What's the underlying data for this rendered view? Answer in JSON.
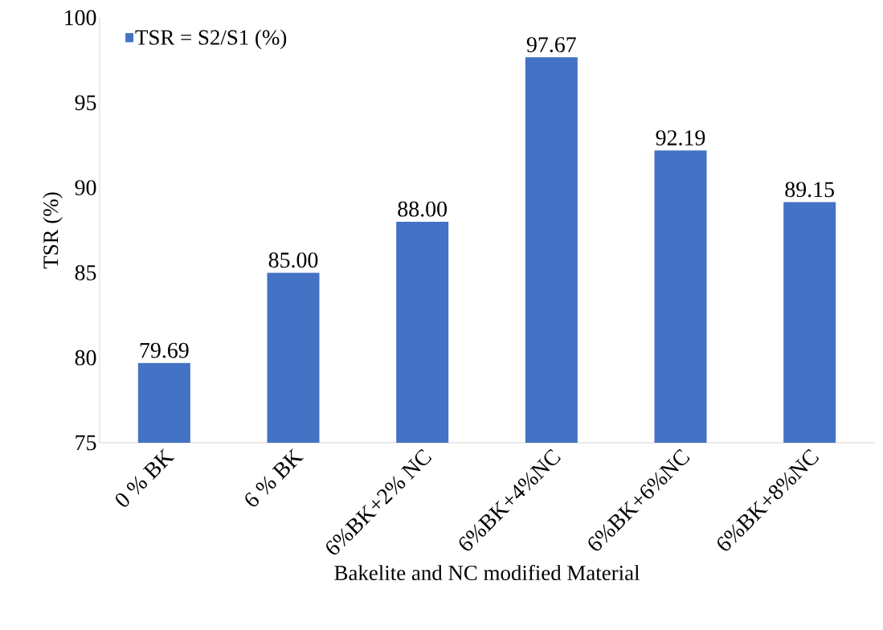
{
  "chart_data": {
    "type": "bar",
    "xlabel": "Bakelite and NC modified Material",
    "ylabel": "TSR (%)",
    "categories": [
      "0 % BK",
      "6 % BK",
      "6%BK+2% NC",
      "6%BK+4%NC",
      "6%BK+6%NC",
      "6%BK+8%NC"
    ],
    "series": [
      {
        "name": "TSR = S2/S1 (%)",
        "color": "#4472c4",
        "values": [
          79.69,
          85.0,
          88.0,
          97.67,
          92.19,
          89.15
        ],
        "value_labels": [
          "79.69",
          "85.00",
          "88.00",
          "97.67",
          "92.19",
          "89.15"
        ]
      }
    ],
    "ylim": [
      75,
      100
    ],
    "yticks": [
      75,
      80,
      85,
      90,
      95,
      100
    ],
    "legend": "top left",
    "grid": false
  }
}
